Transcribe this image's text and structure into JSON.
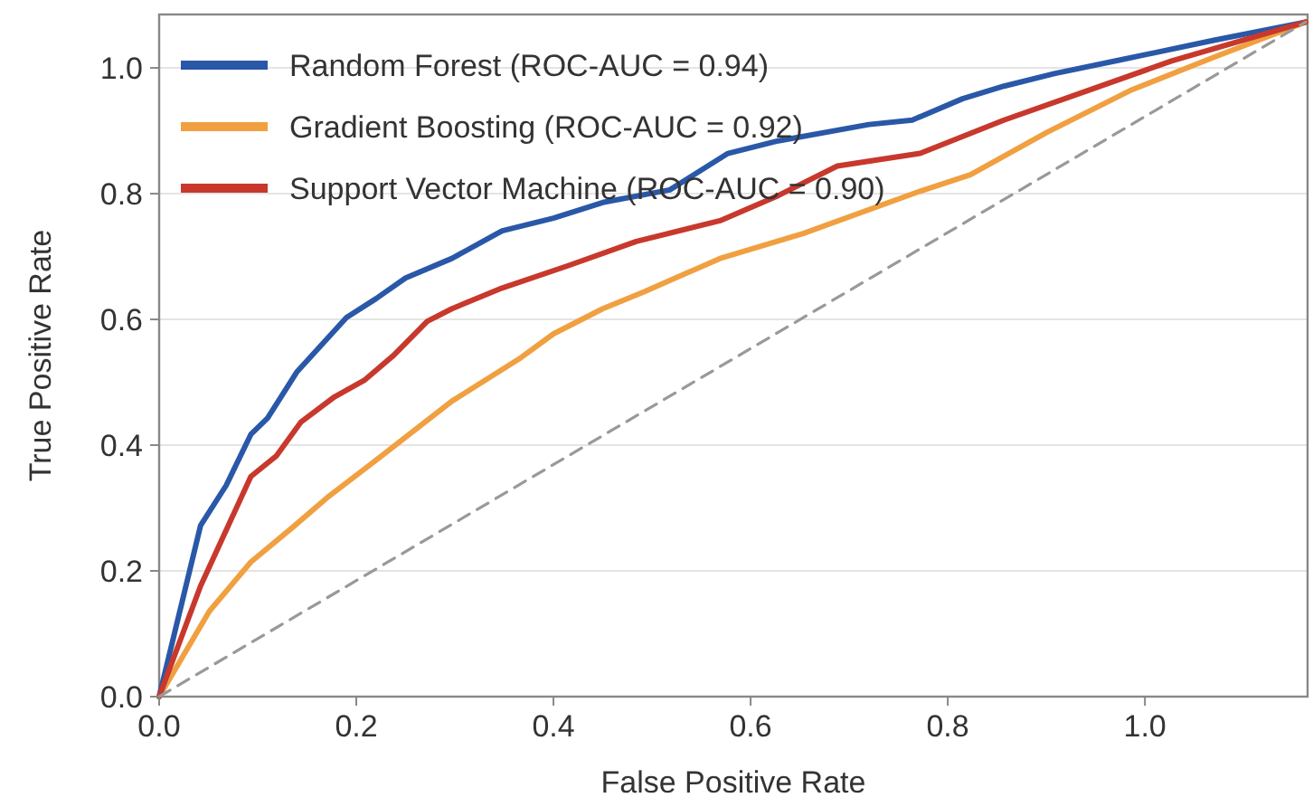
{
  "chart_data": {
    "type": "line",
    "xlabel": "False Positive Rate",
    "ylabel": "True Positive Rate",
    "xlim": [
      0,
      1.165
    ],
    "ylim": [
      0,
      1.085
    ],
    "xticks": [
      {
        "value": 0,
        "label": "0.0"
      },
      {
        "value": 0.2,
        "label": "0.2"
      },
      {
        "value": 0.4,
        "label": "0.4"
      },
      {
        "value": 0.6,
        "label": "0.6"
      },
      {
        "value": 0.8,
        "label": "0.8"
      },
      {
        "value": 1,
        "label": "1.0"
      }
    ],
    "yticks": [
      {
        "value": 0,
        "label": "0.0"
      },
      {
        "value": 0.2,
        "label": "0.2"
      },
      {
        "value": 0.4,
        "label": "0.4"
      },
      {
        "value": 0.6,
        "label": "0.6"
      },
      {
        "value": 0.8,
        "label": "0.8"
      },
      {
        "value": 1,
        "label": "1.0"
      }
    ],
    "grid": "y",
    "legend": "top left",
    "line_style": "solid",
    "marker": "none",
    "series": [
      {
        "name": "Random Forest (ROC-AUC = 0.94)",
        "color": "#2a58a8",
        "x": [
          0,
          0.042,
          0.068,
          0.093,
          0.11,
          0.14,
          0.19,
          0.22,
          0.25,
          0.297,
          0.348,
          0.4,
          0.45,
          0.518,
          0.577,
          0.628,
          0.72,
          0.764,
          0.815,
          0.857,
          0.908,
          0.976,
          1.07,
          1.163
        ],
        "values": [
          0,
          0.272,
          0.336,
          0.417,
          0.443,
          0.517,
          0.603,
          0.633,
          0.666,
          0.697,
          0.741,
          0.761,
          0.786,
          0.806,
          0.864,
          0.884,
          0.91,
          0.917,
          0.951,
          0.971,
          0.991,
          1.013,
          1.044,
          1.073
        ]
      },
      {
        "name": "Gradient Boosting (ROC-AUC = 0.92)",
        "color": "#f0a040",
        "x": [
          0,
          0.051,
          0.093,
          0.136,
          0.17,
          0.22,
          0.297,
          0.365,
          0.4,
          0.45,
          0.492,
          0.569,
          0.654,
          0.772,
          0.823,
          0.9,
          0.985,
          1.07,
          1.163
        ],
        "values": [
          0,
          0.136,
          0.214,
          0.27,
          0.316,
          0.376,
          0.47,
          0.537,
          0.577,
          0.617,
          0.644,
          0.697,
          0.737,
          0.804,
          0.83,
          0.897,
          0.964,
          1.017,
          1.073
        ]
      },
      {
        "name": "Support Vector Machine (ROC-AUC = 0.90)",
        "color": "#c8382c",
        "x": [
          0,
          0.042,
          0.093,
          0.119,
          0.144,
          0.178,
          0.208,
          0.238,
          0.272,
          0.297,
          0.348,
          0.416,
          0.484,
          0.569,
          0.628,
          0.688,
          0.772,
          0.857,
          0.942,
          1.027,
          1.163
        ],
        "values": [
          0,
          0.176,
          0.35,
          0.383,
          0.437,
          0.477,
          0.503,
          0.543,
          0.597,
          0.617,
          0.65,
          0.686,
          0.724,
          0.757,
          0.797,
          0.844,
          0.864,
          0.917,
          0.964,
          1.011,
          1.073
        ]
      },
      {
        "color": "#999999",
        "line_style": "dashed",
        "x": [
          0,
          1.163
        ],
        "values": [
          0,
          1.073
        ]
      }
    ]
  }
}
